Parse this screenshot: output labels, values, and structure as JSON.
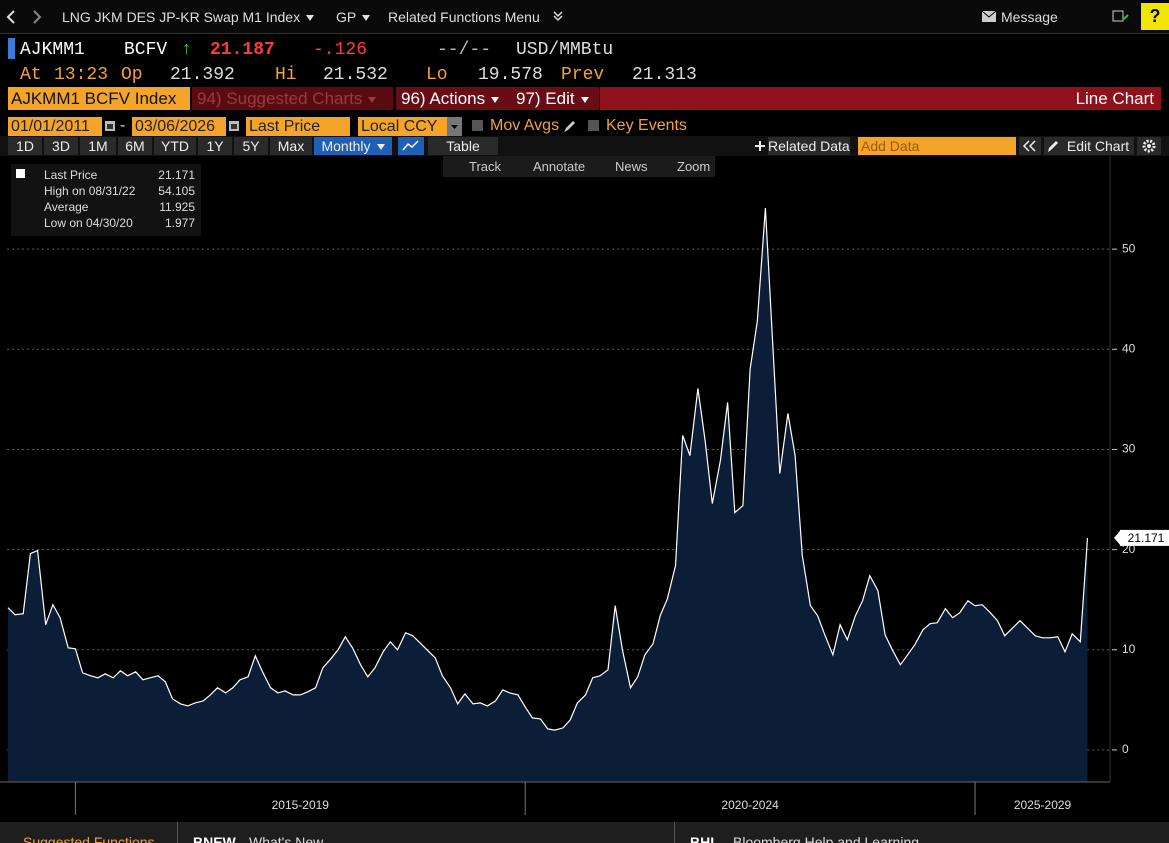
{
  "top_bar": {
    "security": "LNG JKM DES JP-KR Swap M1 Index",
    "function": "GP",
    "related": "Related Functions Menu",
    "message": "Message",
    "help": "?"
  },
  "quote": {
    "ticker": "AJKMM1",
    "source": "BCFV",
    "direction": "↑",
    "last": "21.187",
    "change": "-.126",
    "bid_ask": "--/--",
    "units": "USD/MMBtu"
  },
  "stats_row": [
    {
      "label": "At",
      "value": "13:23"
    },
    {
      "label": "Op",
      "value": "21.392"
    },
    {
      "label": "Hi",
      "value": "21.532"
    },
    {
      "label": "Lo",
      "value": "19.578"
    },
    {
      "label": "Prev",
      "value": "21.313"
    }
  ],
  "menu": {
    "security": "AJKMM1 BCFV Index",
    "items": [
      "94) Suggested Charts",
      "96) Actions",
      "97) Edit"
    ],
    "chart_type": "Line Chart"
  },
  "controls": {
    "start_date": "01/01/2011",
    "date_separator": "-",
    "end_date": "03/06/2026",
    "field": "Last Price",
    "currency": "Local CCY",
    "checkboxes": [
      "Mov Avgs",
      "Key Events"
    ]
  },
  "toolbar": {
    "periods": [
      "1D",
      "3D",
      "1M",
      "6M",
      "YTD",
      "1Y",
      "5Y",
      "Max"
    ],
    "frequency": "Monthly",
    "table": "Table",
    "related_data": "Related Data",
    "add_data": "Add Data",
    "edit_chart": "Edit Chart"
  },
  "chart_tools": [
    "Track",
    "Annotate",
    "News",
    "Zoom"
  ],
  "footer": [
    {
      "code": "",
      "text": "Suggested Functions"
    },
    {
      "code": "BNEW",
      "text": "What's New"
    },
    {
      "code": "BHL",
      "text": "Bloomberg Help and Learning"
    }
  ],
  "chart_data": {
    "type": "area",
    "x": [
      2014.25,
      2014.33,
      2014.42,
      2014.5,
      2014.58,
      2014.67,
      2014.75,
      2014.83,
      2014.92,
      2015,
      2015.08,
      2015.17,
      2015.25,
      2015.33,
      2015.42,
      2015.5,
      2015.58,
      2015.67,
      2015.75,
      2015.83,
      2015.92,
      2016,
      2016.08,
      2016.17,
      2016.25,
      2016.33,
      2016.42,
      2016.5,
      2016.58,
      2016.67,
      2016.75,
      2016.83,
      2016.92,
      2017,
      2017.08,
      2017.17,
      2017.25,
      2017.33,
      2017.42,
      2017.5,
      2017.58,
      2017.67,
      2017.75,
      2017.83,
      2017.92,
      2018,
      2018.08,
      2018.17,
      2018.25,
      2018.33,
      2018.42,
      2018.5,
      2018.58,
      2018.67,
      2018.75,
      2018.83,
      2018.92,
      2019,
      2019.08,
      2019.17,
      2019.25,
      2019.33,
      2019.42,
      2019.5,
      2019.58,
      2019.67,
      2019.75,
      2019.83,
      2019.92,
      2020,
      2020.08,
      2020.17,
      2020.25,
      2020.33,
      2020.42,
      2020.5,
      2020.58,
      2020.67,
      2020.75,
      2020.83,
      2020.92,
      2021,
      2021.08,
      2021.17,
      2021.25,
      2021.33,
      2021.42,
      2021.5,
      2021.58,
      2021.67,
      2021.75,
      2021.83,
      2021.92,
      2022,
      2022.08,
      2022.17,
      2022.25,
      2022.33,
      2022.42,
      2022.5,
      2022.58,
      2022.67,
      2022.75,
      2022.83,
      2022.92,
      2023,
      2023.08,
      2023.17,
      2023.25,
      2023.33,
      2023.42,
      2023.5,
      2023.58,
      2023.67,
      2023.75,
      2023.83,
      2023.92,
      2024,
      2024.08,
      2024.17,
      2024.25,
      2024.33,
      2024.42,
      2024.5,
      2024.58,
      2024.67,
      2024.75,
      2024.83,
      2024.92,
      2025,
      2025.08,
      2025.17,
      2025.25,
      2025.33,
      2025.42,
      2025.5,
      2025.58,
      2025.67,
      2025.75,
      2025.83,
      2025.92,
      2026,
      2026.08,
      2026.17,
      2026.25
    ],
    "series": [
      {
        "name": "Last Price",
        "color": "#ffffff",
        "fill": "#0c1d38",
        "values": [
          14.2,
          13.5,
          13.6,
          19.6,
          19.9,
          12.5,
          14.5,
          13.2,
          10.2,
          10.1,
          7.7,
          7.4,
          7.2,
          7.6,
          7.2,
          7.9,
          7.4,
          7.8,
          7.0,
          7.2,
          7.4,
          6.8,
          5.1,
          4.6,
          4.4,
          4.7,
          4.9,
          5.5,
          6.2,
          5.7,
          6.2,
          7.0,
          7.3,
          9.4,
          7.8,
          6.2,
          5.7,
          5.9,
          5.5,
          5.5,
          5.8,
          6.2,
          8.2,
          9.0,
          10.0,
          11.3,
          10.2,
          8.5,
          7.3,
          8.2,
          9.8,
          10.8,
          10.0,
          11.7,
          11.4,
          10.7,
          9.9,
          9.2,
          7.4,
          6.2,
          4.6,
          5.6,
          4.6,
          4.7,
          4.4,
          4.9,
          6.0,
          5.7,
          5.5,
          4.3,
          3.2,
          3.1,
          2.1,
          1.977,
          2.2,
          3.0,
          4.7,
          5.5,
          7.2,
          7.4,
          8.0,
          14.4,
          10.0,
          6.2,
          7.3,
          9.5,
          10.6,
          13.4,
          15.1,
          18.4,
          31.4,
          29.4,
          36.1,
          30.9,
          24.6,
          28.9,
          34.7,
          23.7,
          24.4,
          38.0,
          42.8,
          54.105,
          40.8,
          27.6,
          33.6,
          29.4,
          19.4,
          14.4,
          13.4,
          11.5,
          9.5,
          12.5,
          11.0,
          13.4,
          14.9,
          17.4,
          15.9,
          11.5,
          10.0,
          8.5,
          9.5,
          10.5,
          12.0,
          12.6,
          12.7,
          14.1,
          13.2,
          13.7,
          14.9,
          14.4,
          14.5,
          13.7,
          12.9,
          11.4,
          12.2,
          12.9,
          12.2,
          11.4,
          11.2,
          11.2,
          11.3,
          9.8,
          11.6,
          10.8,
          21.171
        ]
      }
    ],
    "xlim": [
      2014.24,
      2026.5
    ],
    "ylim": [
      -3.2,
      59.3
    ],
    "yticks": [
      0,
      10,
      20,
      30,
      40,
      50
    ],
    "xticks": [
      {
        "value": 2015,
        "label": "2015-2019"
      },
      {
        "value": 2020,
        "label": "2020-2024"
      },
      {
        "value": 2025,
        "label": "2025-2029"
      }
    ],
    "grid": true,
    "stats": [
      {
        "label": "High on 08/31/22",
        "value": 54.105
      },
      {
        "label": "Average",
        "value": 11.925
      },
      {
        "label": "Low on 04/30/20",
        "value": 1.977
      }
    ]
  }
}
